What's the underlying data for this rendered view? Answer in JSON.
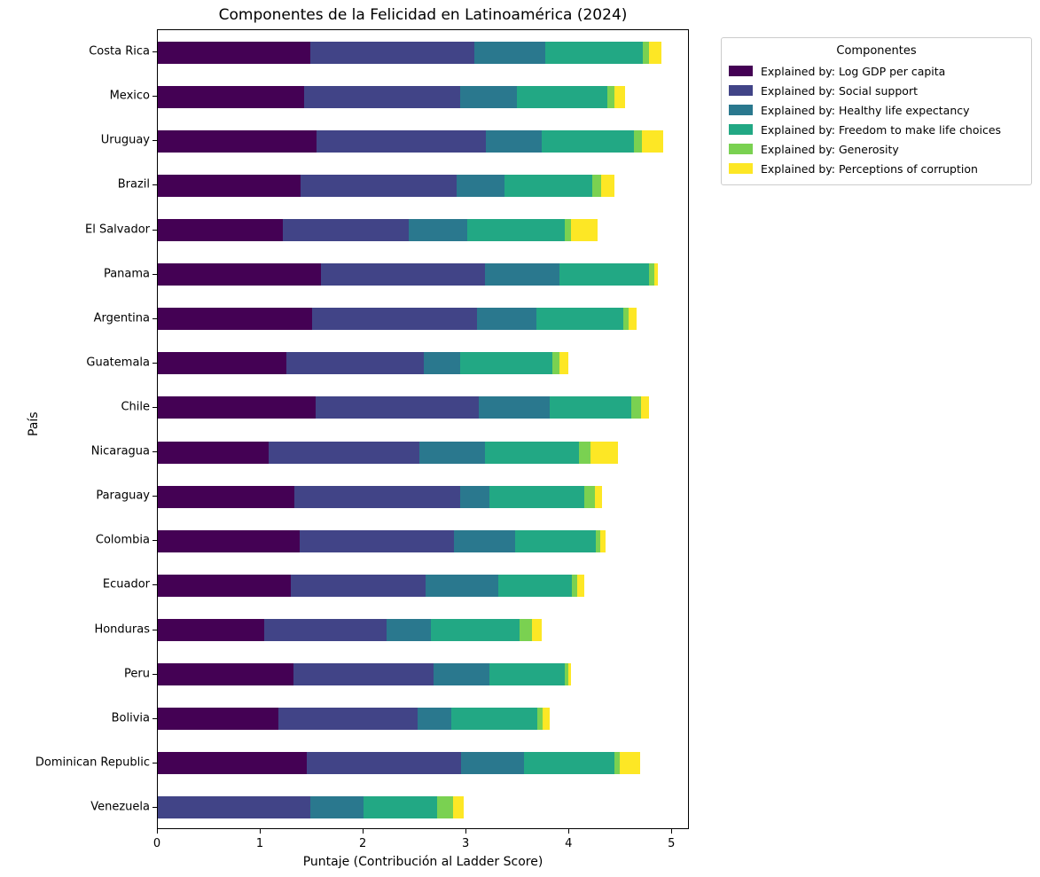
{
  "chart_data": {
    "type": "bar",
    "orientation": "horizontal",
    "stacked": true,
    "title": "Componentes de la Felicidad en Latinoamérica (2024)",
    "xlabel": "Puntaje (Contribución al Ladder Score)",
    "ylabel": "País",
    "xlim": [
      0,
      5.17
    ],
    "xticks": [
      0,
      1,
      2,
      3,
      4,
      5
    ],
    "grid": false,
    "bar_height_fraction": 0.5,
    "legend": {
      "title": "Componentes",
      "position": "outside-upper-right"
    },
    "categories": [
      "Costa Rica",
      "Mexico",
      "Uruguay",
      "Brazil",
      "El Salvador",
      "Panama",
      "Argentina",
      "Guatemala",
      "Chile",
      "Nicaragua",
      "Paraguay",
      "Colombia",
      "Ecuador",
      "Honduras",
      "Peru",
      "Bolivia",
      "Dominican Republic",
      "Venezuela"
    ],
    "series": [
      {
        "name": "Explained by: Log GDP per capita",
        "color": "#440154",
        "values": [
          1.49,
          1.43,
          1.55,
          1.39,
          1.22,
          1.59,
          1.5,
          1.25,
          1.54,
          1.08,
          1.33,
          1.38,
          1.3,
          1.04,
          1.32,
          1.18,
          1.45,
          0.0
        ]
      },
      {
        "name": "Explained by: Social support",
        "color": "#414487",
        "values": [
          1.6,
          1.52,
          1.65,
          1.52,
          1.23,
          1.6,
          1.61,
          1.34,
          1.59,
          1.47,
          1.62,
          1.51,
          1.31,
          1.19,
          1.37,
          1.35,
          1.51,
          1.49
        ]
      },
      {
        "name": "Explained by: Healthy life expectancy",
        "color": "#2a788e",
        "values": [
          0.69,
          0.55,
          0.54,
          0.47,
          0.57,
          0.73,
          0.58,
          0.36,
          0.69,
          0.64,
          0.28,
          0.59,
          0.71,
          0.43,
          0.54,
          0.33,
          0.61,
          0.52
        ]
      },
      {
        "name": "Explained by: Freedom to make life choices",
        "color": "#22a884",
        "values": [
          0.95,
          0.88,
          0.9,
          0.86,
          0.95,
          0.87,
          0.85,
          0.9,
          0.8,
          0.92,
          0.93,
          0.79,
          0.72,
          0.87,
          0.74,
          0.84,
          0.88,
          0.71
        ]
      },
      {
        "name": "Explained by: Generosity",
        "color": "#7ad151",
        "values": [
          0.06,
          0.07,
          0.08,
          0.08,
          0.06,
          0.05,
          0.05,
          0.07,
          0.09,
          0.11,
          0.1,
          0.04,
          0.05,
          0.12,
          0.03,
          0.05,
          0.05,
          0.16
        ]
      },
      {
        "name": "Explained by: Perceptions of corruption",
        "color": "#fde725",
        "values": [
          0.12,
          0.11,
          0.21,
          0.13,
          0.26,
          0.04,
          0.08,
          0.08,
          0.08,
          0.27,
          0.07,
          0.06,
          0.07,
          0.09,
          0.03,
          0.07,
          0.2,
          0.1
        ]
      }
    ]
  }
}
